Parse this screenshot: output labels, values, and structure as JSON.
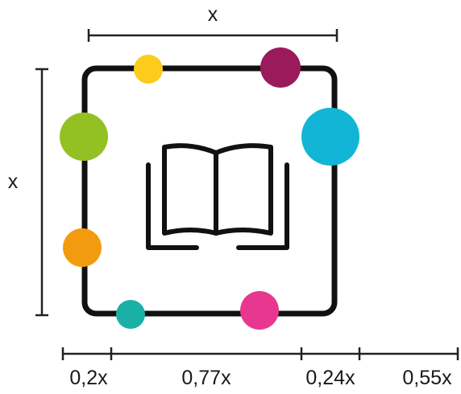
{
  "dimension_labels": {
    "top": "x",
    "left": "x"
  },
  "bottom_scale": {
    "labels": [
      "0,2x",
      "0,77x",
      "0,24x",
      "0,55x"
    ]
  },
  "icon": "open-book-icon",
  "dots": [
    {
      "name": "yellow-dot",
      "color": "#FCCB1C"
    },
    {
      "name": "maroon-dot",
      "color": "#9A1A5B"
    },
    {
      "name": "green-dot",
      "color": "#93C124"
    },
    {
      "name": "cyan-dot",
      "color": "#13B5D6"
    },
    {
      "name": "orange-dot",
      "color": "#F29B0E"
    },
    {
      "name": "teal-dot",
      "color": "#1BB0A6"
    },
    {
      "name": "pink-dot",
      "color": "#E8378F"
    }
  ],
  "colors": {
    "frame": "#111111",
    "dimension_line": "#222222"
  }
}
